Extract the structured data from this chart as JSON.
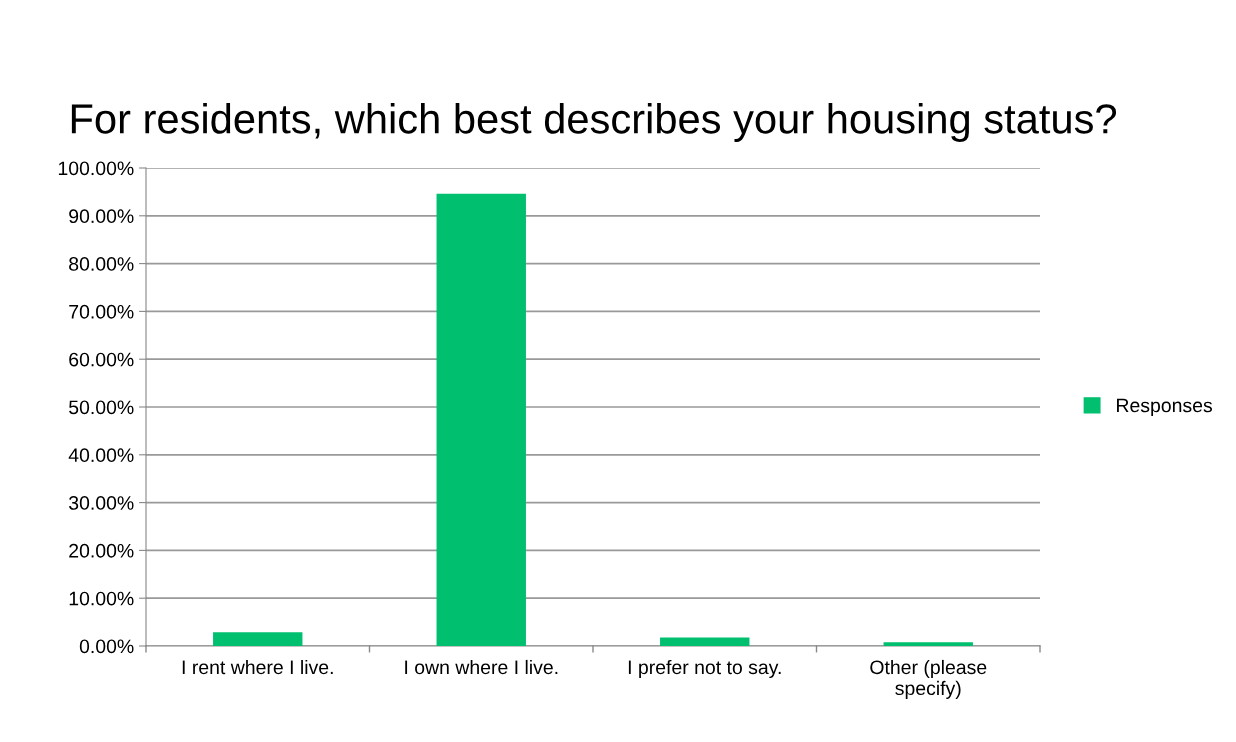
{
  "chart_data": {
    "type": "bar",
    "title": "For residents, which best describes your housing status?",
    "categories": [
      "I rent where I live.",
      "I own where I live.",
      "I prefer not to say.",
      "Other (please specify)"
    ],
    "series": [
      {
        "name": "Responses",
        "color": "#00bf6f",
        "values": [
          2.9,
          94.6,
          1.8,
          0.8
        ]
      }
    ],
    "ylim": [
      0,
      100
    ],
    "yticks": [
      {
        "value": 0,
        "label": "0.00%"
      },
      {
        "value": 10,
        "label": "10.00%"
      },
      {
        "value": 20,
        "label": "20.00%"
      },
      {
        "value": 30,
        "label": "30.00%"
      },
      {
        "value": 40,
        "label": "40.00%"
      },
      {
        "value": 50,
        "label": "50.00%"
      },
      {
        "value": 60,
        "label": "60.00%"
      },
      {
        "value": 70,
        "label": "70.00%"
      },
      {
        "value": 80,
        "label": "80.00%"
      },
      {
        "value": 90,
        "label": "90.00%"
      },
      {
        "value": 100,
        "label": "100.00%"
      }
    ],
    "grid": "y",
    "legend": "right"
  }
}
